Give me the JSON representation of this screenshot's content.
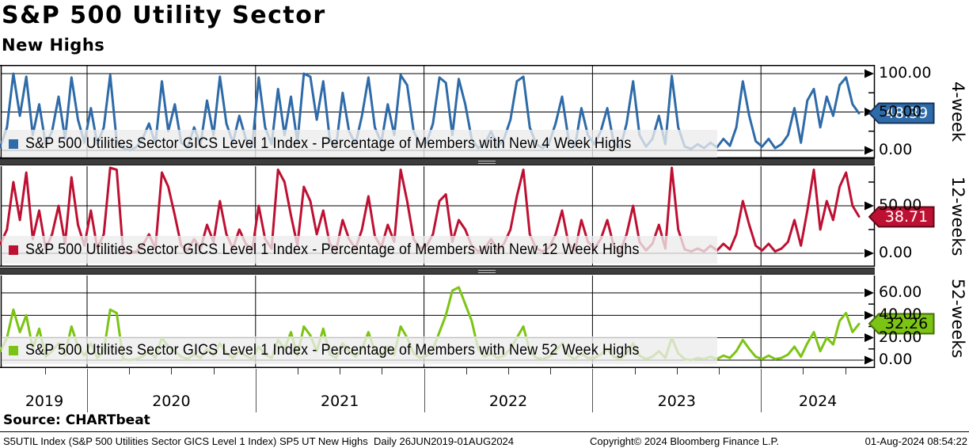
{
  "header": {
    "title": "S&P 500 Utility Sector",
    "subtitle": "New Highs"
  },
  "source_line": "Source: CHARTbeat",
  "footer": {
    "left": "S5UTIL Index (S&P 500 Utilities Sector GICS Level 1 Index) SP5 UT New Highs  Daily 26JUN2019-01AUG2024",
    "center": "Copyright© 2024 Bloomberg Finance L.P.",
    "right": "01-Aug-2024 08:54:22"
  },
  "x_axis": {
    "start": 2019.486,
    "end": 2024.582,
    "year_labels": [
      "2019",
      "2020",
      "2021",
      "2022",
      "2023",
      "2024"
    ],
    "year_gridlines": [
      2020,
      2021,
      2022,
      2023,
      2024
    ]
  },
  "chart_data": [
    {
      "type": "line",
      "panel": "4-week",
      "side_label": "4-week",
      "legend": "S&P 500 Utilities Sector GICS Level 1 Index - Percentage of Members with New 4 Week Highs",
      "color": "#2E6BA8",
      "badge_fill": "#2E6BA8",
      "badge_border": "#17355C",
      "badge_text_color": "#FFFFFF",
      "badge_label": "48.39",
      "last_value": 48.39,
      "ylim": [
        0,
        111
      ],
      "y_ticks": [
        {
          "value": 100,
          "label": "100.00"
        },
        {
          "value": 50,
          "label": "50.00"
        },
        {
          "value": 0,
          "label": "0.00"
        }
      ],
      "y_minor_ticks": [
        75,
        25
      ],
      "x_start": 2019.486,
      "x_end": 2024.582,
      "values": [
        5,
        30,
        100,
        45,
        96,
        20,
        60,
        8,
        25,
        70,
        15,
        95,
        40,
        10,
        55,
        8,
        30,
        98,
        12,
        3,
        0,
        4,
        15,
        35,
        8,
        90,
        25,
        60,
        10,
        4,
        30,
        8,
        65,
        20,
        96,
        35,
        10,
        45,
        15,
        5,
        95,
        30,
        8,
        80,
        20,
        70,
        10,
        100,
        96,
        40,
        90,
        15,
        5,
        75,
        25,
        8,
        45,
        95,
        30,
        10,
        60,
        20,
        98,
        85,
        25,
        8,
        10,
        35,
        95,
        88,
        20,
        93,
        60,
        15,
        3,
        8,
        25,
        5,
        15,
        40,
        90,
        96,
        30,
        8,
        3,
        10,
        35,
        70,
        15,
        5,
        55,
        20,
        8,
        25,
        55,
        10,
        3,
        35,
        90,
        20,
        5,
        15,
        45,
        8,
        97,
        30,
        5,
        2,
        8,
        3,
        10,
        4,
        15,
        6,
        30,
        90,
        45,
        12,
        5,
        15,
        3,
        8,
        20,
        55,
        10,
        65,
        80,
        30,
        70,
        45,
        85,
        95,
        60,
        48.39
      ]
    },
    {
      "type": "line",
      "panel": "12-weeks",
      "side_label": "12-weeks",
      "legend": "S&P 500 Utilities Sector GICS Level 1 Index - Percentage of Members with New 12 Week Highs",
      "color": "#BE1032",
      "badge_fill": "#BE1032",
      "badge_border": "#5E0A18",
      "badge_text_color": "#FFFFFF",
      "badge_label": "38.71",
      "last_value": 38.71,
      "ylim": [
        0,
        92
      ],
      "y_ticks": [
        {
          "value": 50,
          "label": "50.00"
        },
        {
          "value": 0,
          "label": "0.00"
        }
      ],
      "y_minor_ticks": [
        75,
        25
      ],
      "x_start": 2019.486,
      "x_end": 2024.582,
      "values": [
        10,
        25,
        75,
        35,
        85,
        15,
        45,
        5,
        20,
        50,
        10,
        80,
        30,
        8,
        45,
        5,
        20,
        90,
        88,
        2,
        0,
        2,
        8,
        20,
        5,
        85,
        70,
        40,
        8,
        3,
        15,
        5,
        30,
        12,
        55,
        20,
        5,
        25,
        10,
        3,
        50,
        15,
        5,
        88,
        75,
        40,
        8,
        70,
        55,
        20,
        45,
        10,
        3,
        35,
        15,
        5,
        25,
        60,
        18,
        6,
        30,
        12,
        88,
        55,
        15,
        5,
        8,
        20,
        55,
        62,
        12,
        35,
        25,
        8,
        2,
        5,
        15,
        3,
        10,
        25,
        60,
        88,
        20,
        5,
        2,
        6,
        20,
        45,
        10,
        3,
        35,
        12,
        5,
        15,
        35,
        8,
        2,
        20,
        50,
        12,
        3,
        10,
        30,
        5,
        90,
        25,
        4,
        2,
        5,
        2,
        8,
        3,
        10,
        4,
        20,
        55,
        30,
        8,
        3,
        10,
        2,
        5,
        12,
        35,
        8,
        45,
        88,
        25,
        55,
        35,
        70,
        85,
        50,
        38.71
      ]
    },
    {
      "type": "line",
      "panel": "52-weeks",
      "side_label": "52-weeks",
      "legend": "S&P 500 Utilities Sector GICS Level 1 Index - Percentage of Members with New 52 Week Highs",
      "color": "#7CC414",
      "badge_fill": "#7CC414",
      "badge_border": "#456E09",
      "badge_text_color": "#000000",
      "badge_label": "32.26",
      "last_value": 32.26,
      "ylim": [
        0,
        76
      ],
      "y_ticks": [
        {
          "value": 60,
          "label": "60.00"
        },
        {
          "value": 40,
          "label": "40.00"
        },
        {
          "value": 20,
          "label": "20.00"
        },
        {
          "value": 0,
          "label": "0.00"
        }
      ],
      "y_minor_ticks": [
        50,
        30,
        10
      ],
      "x_start": 2019.486,
      "x_end": 2024.582,
      "values": [
        8,
        20,
        45,
        25,
        40,
        10,
        28,
        3,
        8,
        15,
        5,
        30,
        12,
        4,
        15,
        2,
        8,
        45,
        42,
        1,
        0,
        1,
        3,
        8,
        2,
        20,
        12,
        8,
        3,
        1,
        5,
        2,
        10,
        4,
        15,
        6,
        2,
        8,
        4,
        1,
        12,
        5,
        2,
        18,
        10,
        25,
        4,
        30,
        22,
        8,
        28,
        5,
        2,
        15,
        8,
        3,
        10,
        25,
        8,
        3,
        12,
        5,
        30,
        20,
        6,
        2,
        4,
        10,
        25,
        40,
        62,
        65,
        50,
        35,
        10,
        3,
        6,
        2,
        4,
        10,
        20,
        30,
        8,
        2,
        1,
        3,
        8,
        15,
        4,
        1,
        6,
        2,
        2,
        5,
        10,
        3,
        1,
        6,
        15,
        4,
        1,
        3,
        8,
        2,
        20,
        6,
        1,
        0,
        2,
        1,
        3,
        1,
        4,
        2,
        8,
        18,
        10,
        3,
        1,
        4,
        1,
        2,
        5,
        12,
        3,
        15,
        25,
        8,
        20,
        14,
        35,
        42,
        25,
        32.26
      ]
    }
  ]
}
